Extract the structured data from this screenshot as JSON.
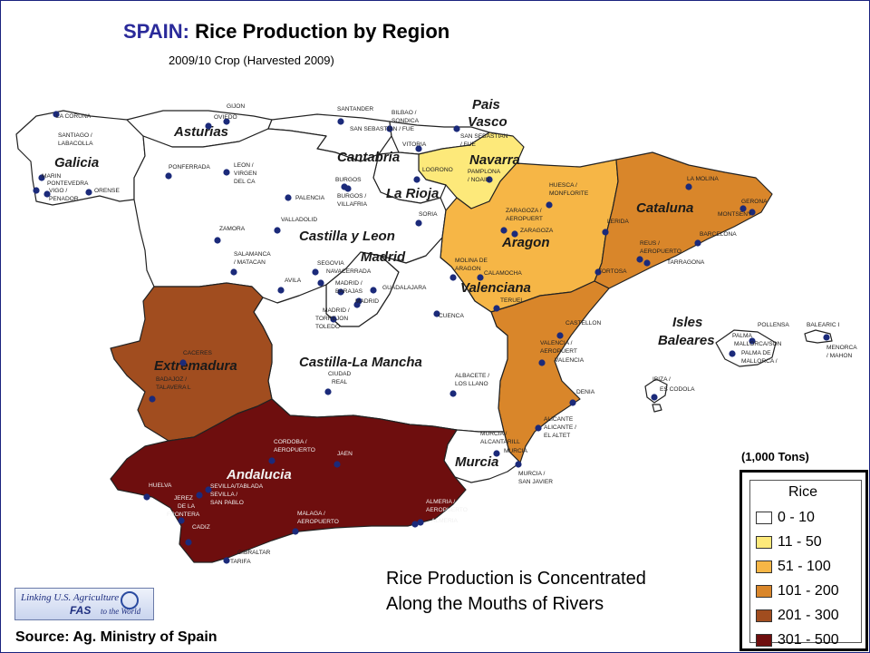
{
  "title": {
    "country": "SPAIN:",
    "text": "Rice Production by Region"
  },
  "subtitle": "2009/10 Crop (Harvested 2009)",
  "units": "(1,000 Tons)",
  "legend": {
    "title": "Rice",
    "classes": [
      {
        "label": "0 - 10",
        "color": "#ffffff"
      },
      {
        "label": "11 - 50",
        "color": "#fde97a"
      },
      {
        "label": "51 - 100",
        "color": "#f6b646"
      },
      {
        "label": "101 - 200",
        "color": "#d9862a"
      },
      {
        "label": "201 - 300",
        "color": "#a14d1f"
      },
      {
        "label": "301 - 500",
        "color": "#6e0e0e"
      }
    ]
  },
  "regions": [
    {
      "name": "Galicia",
      "class": 0
    },
    {
      "name": "Asturias",
      "class": 0
    },
    {
      "name": "Cantabria",
      "class": 0
    },
    {
      "name": "Pais Vasco",
      "class": 0
    },
    {
      "name": "Navarra",
      "class": 1
    },
    {
      "name": "La Rioja",
      "class": 0
    },
    {
      "name": "Castilla y Leon",
      "class": 0
    },
    {
      "name": "Madrid",
      "class": 0
    },
    {
      "name": "Aragon",
      "class": 2
    },
    {
      "name": "Cataluna",
      "class": 3
    },
    {
      "name": "Valenciana",
      "class": 3
    },
    {
      "name": "Castilla-La Mancha",
      "class": 0
    },
    {
      "name": "Extremadura",
      "class": 4
    },
    {
      "name": "Andalucia",
      "class": 5
    },
    {
      "name": "Murcia",
      "class": 0
    },
    {
      "name": "Isles Baleares",
      "class": 0
    }
  ],
  "region_labels": {
    "pais": "Pais",
    "vasco": "Vasco",
    "galicia": "Galicia",
    "asturias": "Asturias",
    "cantabria": "Cantabria",
    "navarra": "Navarra",
    "larioja": "La Rioja",
    "cyl": "Castilla y Leon",
    "madrid": "Madrid",
    "aragon": "Aragon",
    "cataluna": "Cataluna",
    "valenciana": "Valenciana",
    "clm": "Castilla-La Mancha",
    "extremadura": "Extremadura",
    "andalucia": "Andalucia",
    "murcia": "Murcia",
    "isles": "Isles",
    "baleares": "Baleares"
  },
  "cities": [
    "LA CORUNA",
    "SANTIAGO /",
    "LABACOLLA",
    "MARIN",
    "PONTEVEDRA",
    "VIGO /",
    "PENADOR",
    "ORENSE",
    "GIJON",
    "OVIEDO",
    "PONFERRADA",
    "LEON /",
    "VIRGEN",
    "DEL CA",
    "SANTANDER",
    "BILBAO /",
    "SONDICA",
    "SAN SEBASTIAN / FUE",
    "VITORIA",
    "SAN SEBASTIAN",
    "/ FUE",
    "LOGRONO",
    "PAMPLONA",
    "/ NOAIN",
    "BURGOS",
    "BURGOS /",
    "VILLAFRIA",
    "PALENCIA",
    "VALLADOLID",
    "SORIA",
    "ZAMORA",
    "SALAMANCA",
    "/ MATACAN",
    "AVILA",
    "SEGOVIA",
    "NAVACERRADA",
    "MADRID /",
    "BARAJAS",
    "MADRID",
    "GUADALAJARA",
    "MADRID /",
    "TORREJON",
    "TOLEDO",
    "HUESCA /",
    "MONFLORITE",
    "ZARAGOZA /",
    "AEROPUERT",
    "ZARAGOZA",
    "LA MOLINA",
    "GERONA",
    "MONTSENY",
    "LERIDA",
    "BARCELONA",
    "REUS /",
    "AEROPUERTO",
    "TARRAGONA",
    "TORTOSA",
    "MOLINA DE",
    "ARAGON",
    "CALAMOCHA",
    "TERUEL",
    "CUENCA",
    "CASTELLON",
    "VALENCIA /",
    "AEROPUERT",
    "VALENCIA",
    "CACERES",
    "BADAJOZ /",
    "TALAVERA L",
    "CIUDAD",
    "REAL",
    "ALBACETE /",
    "LOS LLANO",
    "DENIA",
    "ALICANTE",
    "ALICANTE /",
    "EL ALTET",
    "MURCIA /",
    "ALCANTARILL",
    "MURCIA",
    "MURCIA /",
    "SAN JAVIER",
    "CORDOBA /",
    "AEROPUERTO",
    "JAEN",
    "HUELVA",
    "SEVILLA/TABLADA",
    "SEVILLA /",
    "SAN PABLO",
    "JEREZ",
    "DE LA",
    "FRONTERA",
    "CADIZ",
    "MALAGA /",
    "AEROPUERTO",
    "ALMERIA /",
    "AEROPUERTO",
    "ALMERIA",
    "GIBRALTAR",
    "TARIFA",
    "POLLENSA",
    "BALEARIC I",
    "PALMA",
    "MALLORCA/SON",
    "PALMA DE",
    "MALLORCA /",
    "MENORCA",
    "/ MAHON",
    "IBIZA /",
    "ES CODOLA"
  ],
  "note": [
    "Rice Production is Concentrated",
    "Along the Mouths of Rivers"
  ],
  "source": "Source: Ag. Ministry of Spain",
  "logo": {
    "line1": "Linking U.S. Agriculture",
    "line2": "FAS",
    "line3": "to the World"
  }
}
